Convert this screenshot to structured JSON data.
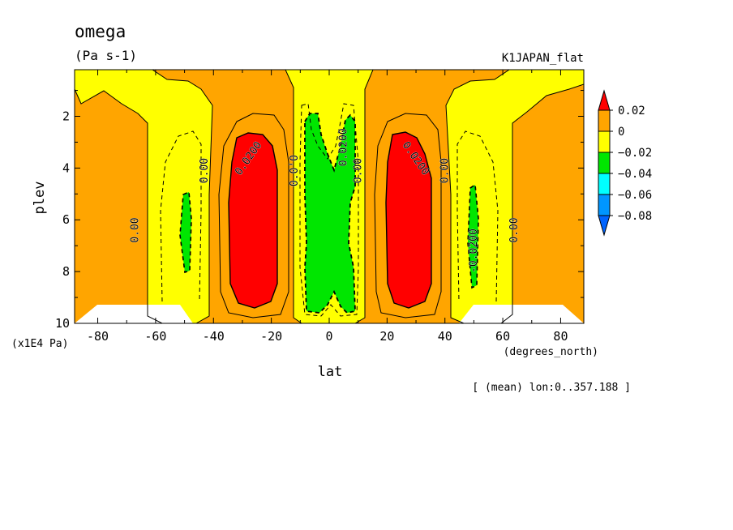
{
  "chart_data": {
    "type": "heatmap",
    "title": "omega",
    "units": "(Pa s-1)",
    "experiment": "K1JAPAN_flat",
    "xlabel": "lat",
    "xunits": "(degrees_north)",
    "ylabel": "plev",
    "yunits": "(x1E4 Pa)",
    "footnote": "[ (mean) lon:0..357.188 ]",
    "xlim": [
      -88,
      88
    ],
    "ylim": [
      10,
      0.2
    ],
    "x_ticks": [
      -80,
      -60,
      -40,
      -20,
      0,
      20,
      40,
      60,
      80
    ],
    "x_tick_labels": [
      "-80",
      "-60",
      "-40",
      "-20",
      "0",
      "20",
      "40",
      "60",
      "80"
    ],
    "y_ticks": [
      2,
      4,
      6,
      8,
      10
    ],
    "y_tick_labels": [
      "2",
      "4",
      "6",
      "8",
      "10"
    ],
    "colorbar": {
      "levels": [
        0.02,
        0,
        -0.02,
        -0.04,
        -0.06,
        -0.08
      ],
      "labels": [
        "0.02",
        "0",
        "−0.02",
        "−0.04",
        "−0.06",
        "−0.08"
      ],
      "colors": {
        "above_0.02": "#ff0000",
        "0_to_0.02": "#ffa500",
        "-0.02_to_0": "#ffff00",
        "-0.04_to_-0.02": "#00e600",
        "-0.06_to_-0.04": "#00ffff",
        "-0.08_to_-0.06": "#0096ff",
        "below_-0.08": "#0064ff"
      }
    },
    "background_color": "#ffa500",
    "missing_color": "#ffffff",
    "contour_labels": [
      {
        "text": "0.00",
        "lat": -66,
        "plev": 6.4
      },
      {
        "text": "0.00",
        "lat": -42,
        "plev": 4.1
      },
      {
        "text": "0.0200",
        "lat": -27,
        "plev": 3.7
      },
      {
        "text": "0.0'0",
        "lat": -11,
        "plev": 4.1
      },
      {
        "text": "0.0200",
        "lat": 6,
        "plev": 3.2
      },
      {
        "text": "0.00",
        "lat": 11,
        "plev": 4.1
      },
      {
        "text": "0.0200",
        "lat": 29,
        "plev": 3.7
      },
      {
        "text": "0.00",
        "lat": 41,
        "plev": 4.1
      },
      {
        "text": "-0.0200",
        "lat": 51,
        "plev": 7.2
      },
      {
        "text": "0.00",
        "lat": 65,
        "plev": 6.4
      }
    ]
  }
}
